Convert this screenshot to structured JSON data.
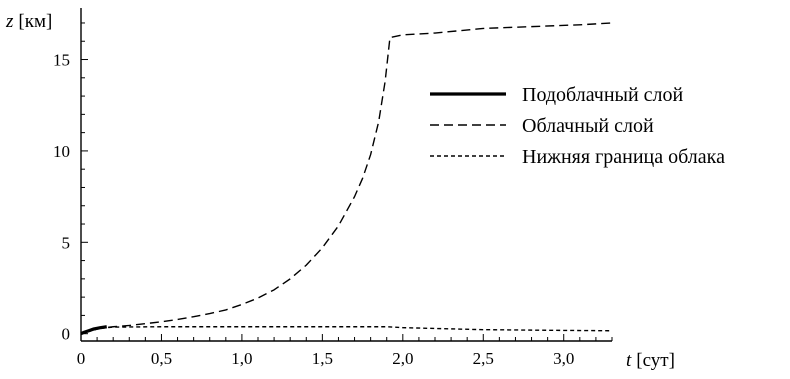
{
  "chart_data": {
    "type": "line",
    "xlabel": {
      "var": "t",
      "unit": "[сут]"
    },
    "ylabel": {
      "var": "z",
      "unit": "[км]"
    },
    "xlim": [
      0,
      3.3
    ],
    "ylim": [
      -0.4,
      17.6
    ],
    "xticks": [
      {
        "value": 0,
        "label": "0"
      },
      {
        "value": 0.5,
        "label": "0,5"
      },
      {
        "value": 1.0,
        "label": "1,0"
      },
      {
        "value": 1.5,
        "label": "1,5"
      },
      {
        "value": 2.0,
        "label": "2,0"
      },
      {
        "value": 2.5,
        "label": "2,5"
      },
      {
        "value": 3.0,
        "label": "3,0"
      }
    ],
    "yticks": [
      {
        "value": 0,
        "label": "0"
      },
      {
        "value": 5,
        "label": "5"
      },
      {
        "value": 10,
        "label": "10"
      },
      {
        "value": 15,
        "label": "15"
      }
    ],
    "legend_position": "right",
    "series": [
      {
        "name": "Подоблачный слой",
        "style": "solid",
        "points": [
          [
            0,
            0
          ],
          [
            0.02,
            0.08
          ],
          [
            0.05,
            0.17
          ],
          [
            0.08,
            0.26
          ],
          [
            0.12,
            0.33
          ],
          [
            0.16,
            0.38
          ]
        ]
      },
      {
        "name": "Облачный слой",
        "style": "dashed",
        "points": [
          [
            0,
            0
          ],
          [
            0.05,
            0.15
          ],
          [
            0.1,
            0.28
          ],
          [
            0.2,
            0.38
          ],
          [
            0.3,
            0.45
          ],
          [
            0.4,
            0.55
          ],
          [
            0.5,
            0.65
          ],
          [
            0.6,
            0.78
          ],
          [
            0.7,
            0.93
          ],
          [
            0.8,
            1.1
          ],
          [
            0.9,
            1.3
          ],
          [
            1.0,
            1.6
          ],
          [
            1.1,
            1.95
          ],
          [
            1.2,
            2.4
          ],
          [
            1.3,
            3.0
          ],
          [
            1.4,
            3.75
          ],
          [
            1.5,
            4.7
          ],
          [
            1.6,
            5.9
          ],
          [
            1.7,
            7.5
          ],
          [
            1.75,
            8.5
          ],
          [
            1.8,
            9.8
          ],
          [
            1.85,
            11.6
          ],
          [
            1.89,
            13.8
          ],
          [
            1.92,
            16.2
          ],
          [
            2.0,
            16.35
          ],
          [
            2.2,
            16.45
          ],
          [
            2.5,
            16.7
          ],
          [
            2.8,
            16.8
          ],
          [
            3.1,
            16.9
          ],
          [
            3.3,
            17.0
          ]
        ]
      },
      {
        "name": "Нижняя граница облака",
        "style": "dotted",
        "points": [
          [
            0,
            0
          ],
          [
            0.05,
            0.12
          ],
          [
            0.1,
            0.25
          ],
          [
            0.15,
            0.32
          ],
          [
            0.2,
            0.36
          ],
          [
            0.5,
            0.38
          ],
          [
            1.0,
            0.38
          ],
          [
            1.5,
            0.38
          ],
          [
            1.9,
            0.38
          ],
          [
            2.0,
            0.33
          ],
          [
            2.5,
            0.22
          ],
          [
            3.0,
            0.18
          ],
          [
            3.3,
            0.16
          ]
        ]
      }
    ]
  }
}
